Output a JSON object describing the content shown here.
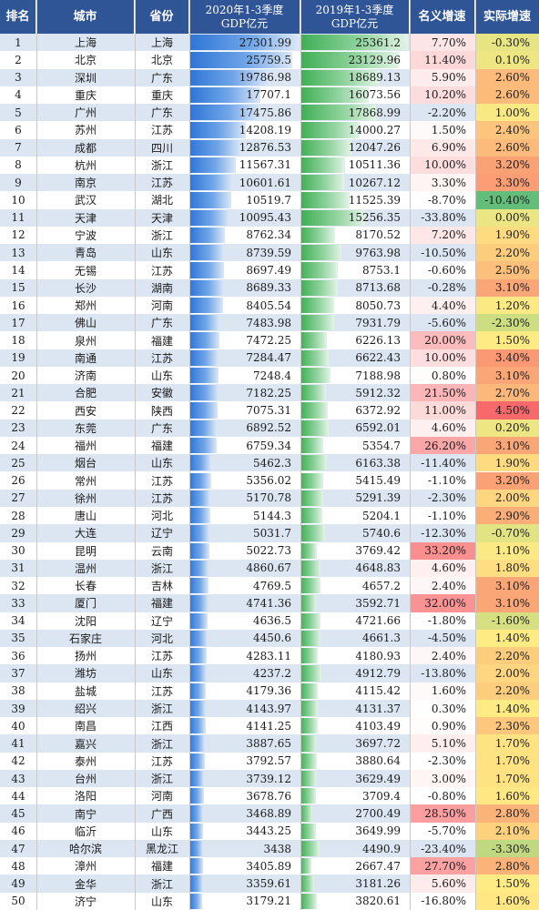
{
  "chart_data": {
    "type": "table",
    "columns": [
      "排名",
      "城市",
      "省份",
      "2020年1-3季度\nGDP亿元",
      "2019年1-3季度\nGDP亿元",
      "名义增速",
      "实际增速"
    ],
    "rows": [
      {
        "rank": "1",
        "city": "上海",
        "province": "上海",
        "gdp2020": "27301.99",
        "gdp2019": "25361.2",
        "nominal": "7.70%",
        "real": "-0.30%"
      },
      {
        "rank": "2",
        "city": "北京",
        "province": "北京",
        "gdp2020": "25759.5",
        "gdp2019": "23129.96",
        "nominal": "11.40%",
        "real": "0.10%"
      },
      {
        "rank": "3",
        "city": "深圳",
        "province": "广东",
        "gdp2020": "19786.98",
        "gdp2019": "18689.13",
        "nominal": "5.90%",
        "real": "2.60%"
      },
      {
        "rank": "4",
        "city": "重庆",
        "province": "重庆",
        "gdp2020": "17707.1",
        "gdp2019": "16073.56",
        "nominal": "10.20%",
        "real": "2.60%"
      },
      {
        "rank": "5",
        "city": "广州",
        "province": "广东",
        "gdp2020": "17475.86",
        "gdp2019": "17868.99",
        "nominal": "-2.20%",
        "real": "1.00%"
      },
      {
        "rank": "6",
        "city": "苏州",
        "province": "江苏",
        "gdp2020": "14208.19",
        "gdp2019": "14000.27",
        "nominal": "1.50%",
        "real": "2.40%"
      },
      {
        "rank": "7",
        "city": "成都",
        "province": "四川",
        "gdp2020": "12876.53",
        "gdp2019": "12047.26",
        "nominal": "6.90%",
        "real": "2.60%"
      },
      {
        "rank": "8",
        "city": "杭州",
        "province": "浙江",
        "gdp2020": "11567.31",
        "gdp2019": "10511.36",
        "nominal": "10.00%",
        "real": "3.20%"
      },
      {
        "rank": "9",
        "city": "南京",
        "province": "江苏",
        "gdp2020": "10601.61",
        "gdp2019": "10267.12",
        "nominal": "3.30%",
        "real": "3.30%"
      },
      {
        "rank": "10",
        "city": "武汉",
        "province": "湖北",
        "gdp2020": "10519.7",
        "gdp2019": "11525.39",
        "nominal": "-8.70%",
        "real": "-10.40%"
      },
      {
        "rank": "11",
        "city": "天津",
        "province": "天津",
        "gdp2020": "10095.43",
        "gdp2019": "15256.35",
        "nominal": "-33.80%",
        "real": "0.00%"
      },
      {
        "rank": "12",
        "city": "宁波",
        "province": "浙江",
        "gdp2020": "8762.34",
        "gdp2019": "8170.52",
        "nominal": "7.20%",
        "real": "1.90%"
      },
      {
        "rank": "13",
        "city": "青岛",
        "province": "山东",
        "gdp2020": "8739.59",
        "gdp2019": "9763.98",
        "nominal": "-10.50%",
        "real": "2.20%"
      },
      {
        "rank": "14",
        "city": "无锡",
        "province": "江苏",
        "gdp2020": "8697.49",
        "gdp2019": "8753.1",
        "nominal": "-0.60%",
        "real": "2.50%"
      },
      {
        "rank": "15",
        "city": "长沙",
        "province": "湖南",
        "gdp2020": "8689.33",
        "gdp2019": "8713.68",
        "nominal": "-0.28%",
        "real": "3.10%"
      },
      {
        "rank": "16",
        "city": "郑州",
        "province": "河南",
        "gdp2020": "8405.54",
        "gdp2019": "8050.73",
        "nominal": "4.40%",
        "real": "1.20%"
      },
      {
        "rank": "17",
        "city": "佛山",
        "province": "广东",
        "gdp2020": "7483.98",
        "gdp2019": "7931.79",
        "nominal": "-5.60%",
        "real": "-2.30%"
      },
      {
        "rank": "18",
        "city": "泉州",
        "province": "福建",
        "gdp2020": "7472.25",
        "gdp2019": "6226.13",
        "nominal": "20.00%",
        "real": "1.50%"
      },
      {
        "rank": "19",
        "city": "南通",
        "province": "江苏",
        "gdp2020": "7284.47",
        "gdp2019": "6622.43",
        "nominal": "10.00%",
        "real": "3.40%"
      },
      {
        "rank": "20",
        "city": "济南",
        "province": "山东",
        "gdp2020": "7248.4",
        "gdp2019": "7188.98",
        "nominal": "0.80%",
        "real": "3.10%"
      },
      {
        "rank": "21",
        "city": "合肥",
        "province": "安徽",
        "gdp2020": "7182.25",
        "gdp2019": "5912.32",
        "nominal": "21.50%",
        "real": "2.70%"
      },
      {
        "rank": "22",
        "city": "西安",
        "province": "陕西",
        "gdp2020": "7075.31",
        "gdp2019": "6372.92",
        "nominal": "11.00%",
        "real": "4.50%"
      },
      {
        "rank": "23",
        "city": "东莞",
        "province": "广东",
        "gdp2020": "6892.52",
        "gdp2019": "6592.01",
        "nominal": "4.60%",
        "real": "0.20%"
      },
      {
        "rank": "24",
        "city": "福州",
        "province": "福建",
        "gdp2020": "6759.34",
        "gdp2019": "5354.7",
        "nominal": "26.20%",
        "real": "3.10%"
      },
      {
        "rank": "25",
        "city": "烟台",
        "province": "山东",
        "gdp2020": "5462.3",
        "gdp2019": "6163.38",
        "nominal": "-11.40%",
        "real": "1.90%"
      },
      {
        "rank": "26",
        "city": "常州",
        "province": "江苏",
        "gdp2020": "5356.02",
        "gdp2019": "5415.49",
        "nominal": "-1.10%",
        "real": "3.20%"
      },
      {
        "rank": "27",
        "city": "徐州",
        "province": "江苏",
        "gdp2020": "5170.78",
        "gdp2019": "5291.39",
        "nominal": "-2.30%",
        "real": "2.00%"
      },
      {
        "rank": "28",
        "city": "唐山",
        "province": "河北",
        "gdp2020": "5144.3",
        "gdp2019": "5204.1",
        "nominal": "-1.10%",
        "real": "2.90%"
      },
      {
        "rank": "29",
        "city": "大连",
        "province": "辽宁",
        "gdp2020": "5031.7",
        "gdp2019": "5740.6",
        "nominal": "-12.30%",
        "real": "-0.70%"
      },
      {
        "rank": "30",
        "city": "昆明",
        "province": "云南",
        "gdp2020": "5022.73",
        "gdp2019": "3769.42",
        "nominal": "33.20%",
        "real": "1.10%"
      },
      {
        "rank": "31",
        "city": "温州",
        "province": "浙江",
        "gdp2020": "4860.67",
        "gdp2019": "4648.83",
        "nominal": "4.60%",
        "real": "1.80%"
      },
      {
        "rank": "32",
        "city": "长春",
        "province": "吉林",
        "gdp2020": "4769.5",
        "gdp2019": "4657.2",
        "nominal": "2.40%",
        "real": "3.10%"
      },
      {
        "rank": "33",
        "city": "厦门",
        "province": "福建",
        "gdp2020": "4741.36",
        "gdp2019": "3592.71",
        "nominal": "32.00%",
        "real": "3.10%"
      },
      {
        "rank": "34",
        "city": "沈阳",
        "province": "辽宁",
        "gdp2020": "4636.5",
        "gdp2019": "4721.66",
        "nominal": "-1.80%",
        "real": "-1.60%"
      },
      {
        "rank": "35",
        "city": "石家庄",
        "province": "河北",
        "gdp2020": "4450.6",
        "gdp2019": "4661.3",
        "nominal": "-4.50%",
        "real": "1.40%"
      },
      {
        "rank": "36",
        "city": "扬州",
        "province": "江苏",
        "gdp2020": "4283.11",
        "gdp2019": "4180.93",
        "nominal": "2.40%",
        "real": "2.20%"
      },
      {
        "rank": "37",
        "city": "潍坊",
        "province": "山东",
        "gdp2020": "4237.2",
        "gdp2019": "4912.79",
        "nominal": "-13.80%",
        "real": "2.00%"
      },
      {
        "rank": "38",
        "city": "盐城",
        "province": "江苏",
        "gdp2020": "4179.36",
        "gdp2019": "4115.42",
        "nominal": "1.60%",
        "real": "2.20%"
      },
      {
        "rank": "39",
        "city": "绍兴",
        "province": "浙江",
        "gdp2020": "4143.97",
        "gdp2019": "4131.37",
        "nominal": "0.30%",
        "real": "1.40%"
      },
      {
        "rank": "40",
        "city": "南昌",
        "province": "江西",
        "gdp2020": "4141.25",
        "gdp2019": "4103.49",
        "nominal": "0.90%",
        "real": "2.30%"
      },
      {
        "rank": "41",
        "city": "嘉兴",
        "province": "浙江",
        "gdp2020": "3887.65",
        "gdp2019": "3697.72",
        "nominal": "5.10%",
        "real": "1.70%"
      },
      {
        "rank": "42",
        "city": "泰州",
        "province": "江苏",
        "gdp2020": "3792.57",
        "gdp2019": "3880.64",
        "nominal": "-2.30%",
        "real": "1.70%"
      },
      {
        "rank": "43",
        "city": "台州",
        "province": "浙江",
        "gdp2020": "3739.12",
        "gdp2019": "3629.49",
        "nominal": "3.00%",
        "real": "1.70%"
      },
      {
        "rank": "44",
        "city": "洛阳",
        "province": "河南",
        "gdp2020": "3678.76",
        "gdp2019": "3709.4",
        "nominal": "-0.80%",
        "real": "1.60%"
      },
      {
        "rank": "45",
        "city": "南宁",
        "province": "广西",
        "gdp2020": "3468.89",
        "gdp2019": "2700.49",
        "nominal": "28.50%",
        "real": "2.80%"
      },
      {
        "rank": "46",
        "city": "临沂",
        "province": "山东",
        "gdp2020": "3443.25",
        "gdp2019": "3649.99",
        "nominal": "-5.70%",
        "real": "2.10%"
      },
      {
        "rank": "47",
        "city": "哈尔滨",
        "province": "黑龙江",
        "gdp2020": "3438",
        "gdp2019": "4490.9",
        "nominal": "-23.40%",
        "real": "-3.30%"
      },
      {
        "rank": "48",
        "city": "漳州",
        "province": "福建",
        "gdp2020": "3405.89",
        "gdp2019": "2667.47",
        "nominal": "27.70%",
        "real": "2.80%"
      },
      {
        "rank": "49",
        "city": "金华",
        "province": "浙江",
        "gdp2020": "3359.61",
        "gdp2019": "3181.26",
        "nominal": "5.60%",
        "real": "1.50%"
      },
      {
        "rank": "50",
        "city": "济宁",
        "province": "山东",
        "gdp2020": "3179.21",
        "gdp2019": "3820.61",
        "nominal": "-16.80%",
        "real": "1.60%"
      }
    ]
  }
}
